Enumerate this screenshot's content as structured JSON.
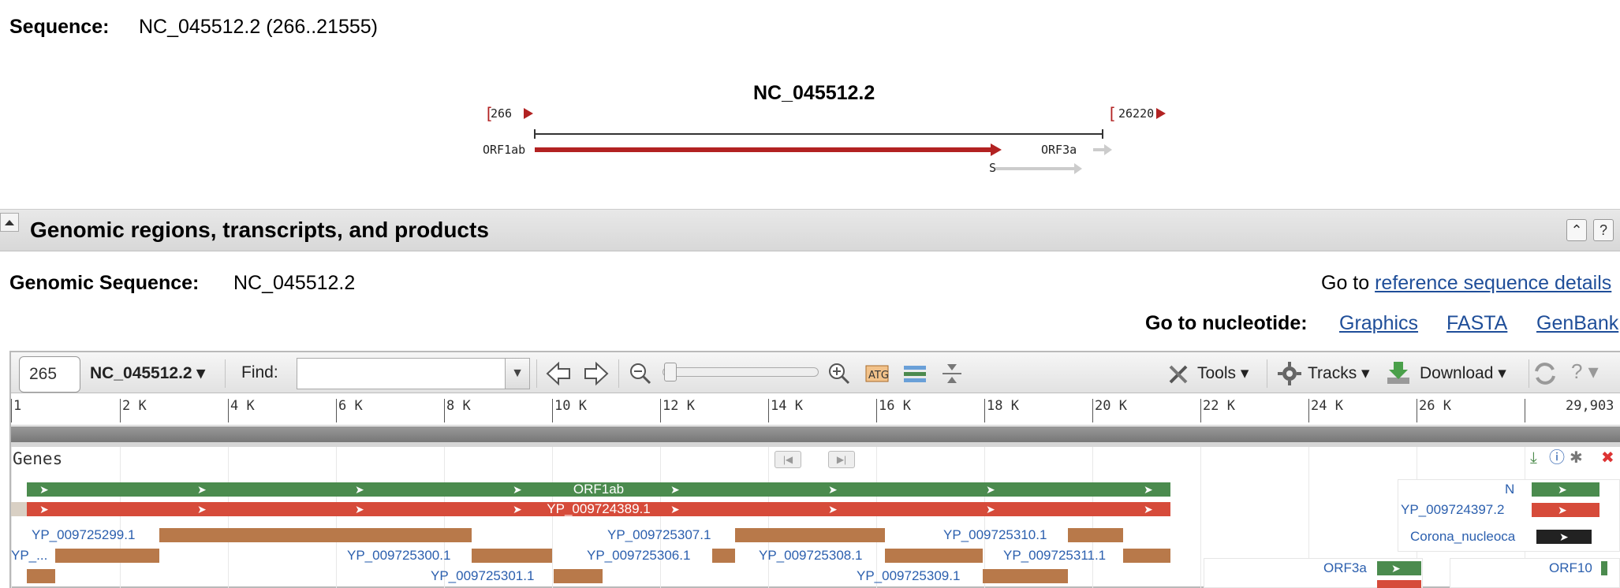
{
  "header": {
    "sequence_label": "Sequence:",
    "sequence_value": "NC_045512.2 (266..21555)"
  },
  "overview": {
    "title": "NC_045512.2",
    "start": "266",
    "end": "26220",
    "gene_left": "ORF1ab",
    "gene_right": "ORF3a",
    "gene_s": "S",
    "colors": {
      "orf1ab": "#b22222",
      "other": "#cccccc"
    }
  },
  "section": {
    "title": "Genomic regions, transcripts, and products",
    "collapse_icon": "triangle-up-icon",
    "buttons": [
      "double-up-icon",
      "help-icon"
    ]
  },
  "genomic": {
    "label": "Genomic Sequence:",
    "value": "NC_045512.2",
    "goto_prefix": "Go to ",
    "goto_link": "reference sequence details"
  },
  "goto_nucleotide": {
    "label": "Go to nucleotide:",
    "links": [
      "Graphics",
      "FASTA",
      "GenBank"
    ]
  },
  "toolbar": {
    "position": "265",
    "sequence_select": "NC_045512.2 ▾",
    "find_label": "Find:",
    "find_value": "",
    "tools_label": "Tools ▾",
    "tracks_label": "Tracks ▾",
    "download_label": "Download ▾",
    "help_label": "?  ▾"
  },
  "ruler": {
    "ticks": [
      "1",
      "2 K",
      "4 K",
      "6 K",
      "8 K",
      "10 K",
      "12 K",
      "14 K",
      "16 K",
      "18 K",
      "20 K",
      "22 K",
      "24 K",
      "26 K",
      "29,903"
    ]
  },
  "track": {
    "label": "Genes",
    "gene_bar_label": "ORF1ab",
    "rna_bar_label": "YP_009724389.1",
    "proteins": {
      "p1": "YP_009725299.1",
      "p2": "YP_009725307.1",
      "p3": "YP_009725310.1",
      "p4": "YP_...",
      "p5": "YP_009725300.1",
      "p6": "YP_009725306.1",
      "p7": "YP_009725308.1",
      "p8": "YP_009725311.1",
      "p9": "YP_009725301.1",
      "p10": "YP_009725309.1"
    },
    "right": {
      "n_label": "N",
      "n_protein": "YP_009724397.2",
      "nucleo": "Corona_nucleoca",
      "orf3a": "ORF3a",
      "orf10": "ORF10"
    },
    "colors": {
      "gene": "#4b8b4e",
      "rna": "#d64b3a",
      "protein": "#b8794a"
    }
  }
}
